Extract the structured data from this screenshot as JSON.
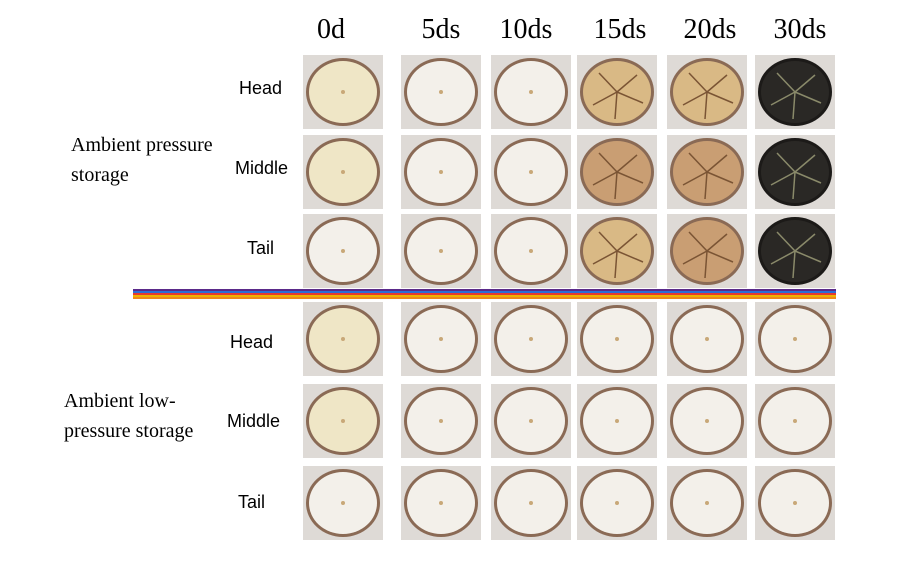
{
  "columns": [
    "0d",
    "5ds",
    "10ds",
    "15ds",
    "20ds",
    "30ds"
  ],
  "groups": [
    {
      "label": "Ambient pressure storage",
      "rows": [
        "Head",
        "Middle",
        "Tail"
      ]
    },
    {
      "label": "Ambient low-pressure storage",
      "rows": [
        "Head",
        "Middle",
        "Tail"
      ]
    }
  ],
  "divider_colors": [
    "#5b2a8a",
    "#2b6fd6",
    "#e63a2e",
    "#f0b400",
    "#f08a1a"
  ],
  "cell_colors": {
    "fresh": "#efe6c6",
    "fresh_yellow": "#ead9a8",
    "white": "#f3f0ea",
    "browning": "#d9b985",
    "brown": "#c99e73",
    "dark": "#2a2825",
    "peel": "#8a6a55",
    "background": "#dedad6"
  }
}
